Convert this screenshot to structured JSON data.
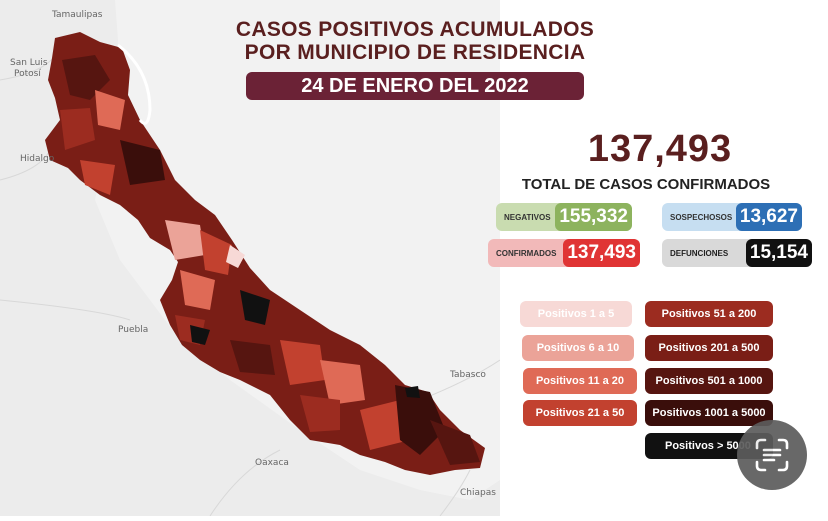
{
  "header": {
    "title_line1": "CASOS POSITIVOS ACUMULADOS",
    "title_line2": "POR MUNICIPIO DE RESIDENCIA",
    "date": "24 DE ENERO DEL 2022"
  },
  "summary": {
    "total": "137,493",
    "total_label": "TOTAL DE CASOS CONFIRMADOS"
  },
  "stats": {
    "negativos": {
      "label": "NEGATIVOS",
      "value": "155,332",
      "bg": "#c9dcb0",
      "color": "#8db35e"
    },
    "sospechosos": {
      "label": "SOSPECHOSOS",
      "value": "13,627",
      "bg": "#c6def1",
      "color": "#2d6fb5"
    },
    "confirmados": {
      "label": "CONFIRMADOS",
      "value": "137,493",
      "bg": "#f2b9b9",
      "color": "#e03434"
    },
    "defunciones": {
      "label": "DEFUNCIONES",
      "value": "15,154",
      "bg": "#d9d9d9",
      "color": "#111111"
    }
  },
  "legend": [
    {
      "label": "Positivos 1 a 5",
      "color": "#f7d9d6"
    },
    {
      "label": "Positivos 6 a 10",
      "color": "#eba398"
    },
    {
      "label": "Positivos 11 a 20",
      "color": "#df6a56"
    },
    {
      "label": "Positivos 21 a 50",
      "color": "#c2412f"
    },
    {
      "label": "Positivos 51 a 200",
      "color": "#9c2c20"
    },
    {
      "label": "Positivos 201 a 500",
      "color": "#7a1e16"
    },
    {
      "label": "Positivos 501 a 1000",
      "color": "#561510"
    },
    {
      "label": "Positivos 1001 a 5000",
      "color": "#3a0e0b"
    },
    {
      "label": "Positivos > 5000",
      "color": "#111111"
    }
  ],
  "map": {
    "neighbor_labels": {
      "tamaulipas": "Tamaulipas",
      "slp1": "San Luis",
      "slp2": "Potosí",
      "hidalgo": "Hidalgo",
      "puebla": "Puebla",
      "oaxaca": "Oaxaca",
      "tabasco": "Tabasco",
      "chiapas": "Chiapas"
    }
  },
  "overlay": {
    "icon": "text-scan-icon"
  }
}
